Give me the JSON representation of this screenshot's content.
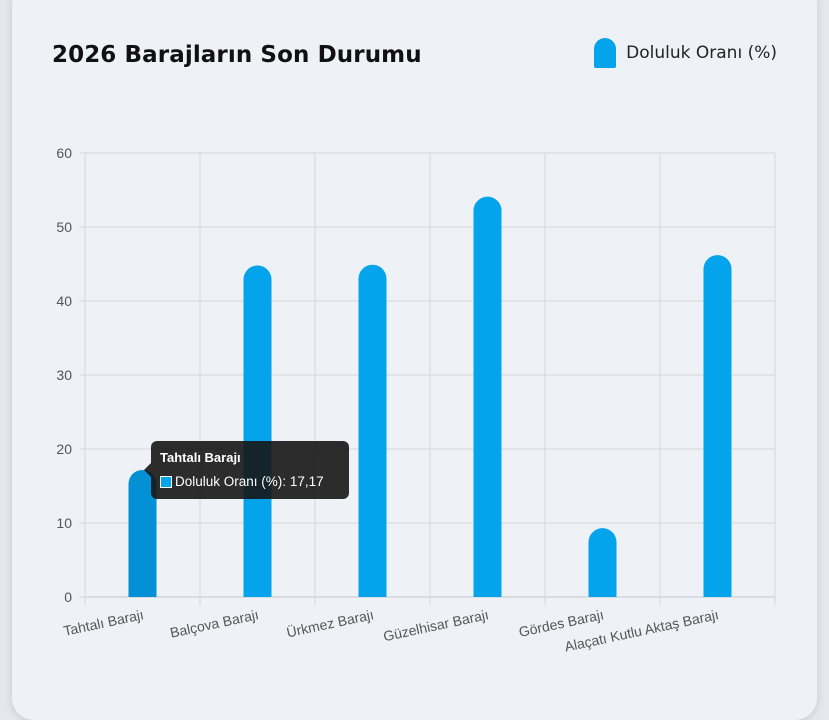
{
  "title": "2026 Barajların Son Durumu",
  "legend": {
    "label": "Doluluk Oranı (%)",
    "color": "#03a4ec"
  },
  "tooltip": {
    "title": "Tahtalı Barajı",
    "series_label": "Doluluk Oranı (%)",
    "value_text": "17,17",
    "separator": ": "
  },
  "chart_data": {
    "type": "bar",
    "categories": [
      "Tahtalı Barajı",
      "Balçova Barajı",
      "Ürkmez Barajı",
      "Güzelhisar Barajı",
      "Gördes Barajı",
      "Alaçatı Kutlu Aktaş Barajı"
    ],
    "series": [
      {
        "name": "Doluluk Oranı (%)",
        "values": [
          17.17,
          44.8,
          44.9,
          54.1,
          9.3,
          46.2
        ],
        "color": "#03a4ec"
      }
    ],
    "highlight_index": 0,
    "highlight_color": "#0390d4",
    "ylim": [
      0,
      60
    ],
    "yticks": [
      "0",
      "10",
      "20",
      "30",
      "40",
      "50",
      "60"
    ],
    "grid": true,
    "legend_position": "top-right"
  }
}
